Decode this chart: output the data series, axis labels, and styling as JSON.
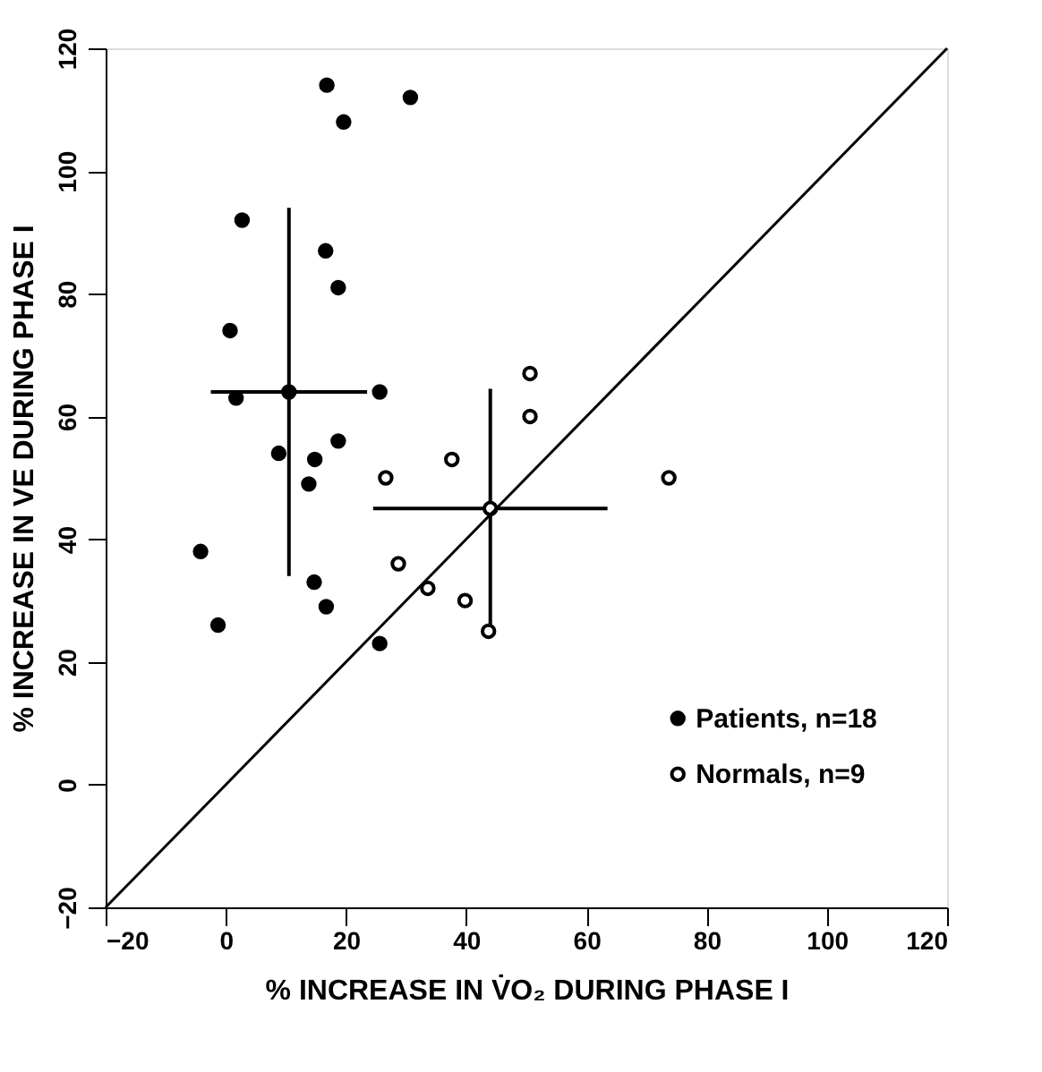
{
  "chart_data": {
    "type": "scatter",
    "xlabel": "% INCREASE IN V̇O₂ DURING PHASE I",
    "ylabel": "% INCREASE IN VE DURING PHASE I",
    "xlim": [
      -20,
      120
    ],
    "xticks": [
      -20,
      0,
      20,
      40,
      60,
      80,
      100,
      120
    ],
    "ylim": [
      -20,
      120
    ],
    "yticks": [
      -20,
      0,
      20,
      40,
      60,
      80,
      100,
      120
    ],
    "grid": false,
    "legend": "bottom right",
    "marker": "circle",
    "series": [
      {
        "name": "Patients, n=18",
        "color": "#000000",
        "x": [
          16.8,
          30.7,
          19.6,
          2.7,
          16.6,
          18.7,
          0.7,
          1.7,
          25.6,
          18.7,
          8.8,
          14.8,
          13.8,
          -4.2,
          14.7,
          16.7,
          -1.3,
          25.6
        ],
        "values": [
          114,
          112,
          108,
          92,
          87,
          81,
          74,
          63,
          64,
          56,
          54,
          53,
          49,
          38,
          33,
          29,
          26,
          23
        ]
      },
      {
        "name": "Normals, n=9",
        "color": "#ffffff",
        "x": [
          50.6,
          50.6,
          37.6,
          73.7,
          26.6,
          28.7,
          33.6,
          39.8,
          43.7
        ],
        "values": [
          67,
          60,
          53,
          50,
          50,
          36,
          32,
          30,
          25
        ]
      },
      {
        "color": "#000000",
        "x": [
          10.5
        ],
        "values": [
          64
        ],
        "errors": [
          30
        ],
        "xerrors": [
          13
        ]
      },
      {
        "color": "#ffffff",
        "x": [
          44
        ],
        "values": [
          45
        ],
        "errors": [
          19.5
        ],
        "xerrors": [
          19.5
        ]
      },
      {
        "type": "line",
        "color": "#000000",
        "marker": "none",
        "line_style": "solid",
        "x": [
          -20,
          120
        ],
        "values": [
          -20,
          120
        ]
      }
    ]
  }
}
